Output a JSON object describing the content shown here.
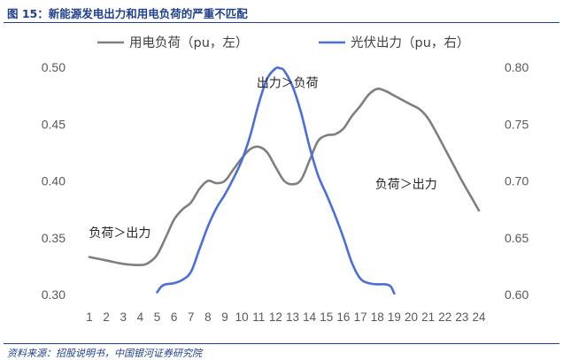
{
  "figure": {
    "title": "图 15：新能源发电出力和用电负荷的严重不匹配",
    "source": "资料来源：招股说明书，中国银河证券研究院"
  },
  "chart_data": {
    "type": "line",
    "x": [
      1,
      2,
      3,
      4,
      5,
      6,
      7,
      8,
      9,
      10,
      11,
      12,
      13,
      14,
      15,
      16,
      17,
      18,
      19,
      20,
      21,
      22,
      23,
      24
    ],
    "x_ticks": [
      "1",
      "2",
      "3",
      "4",
      "5",
      "6",
      "7",
      "8",
      "9",
      "10",
      "11",
      "12",
      "13",
      "14",
      "15",
      "16",
      "17",
      "18",
      "19",
      "20",
      "21",
      "22",
      "23",
      "24"
    ],
    "y_left": {
      "range": [
        0.3,
        0.5
      ],
      "ticks": [
        "0.30",
        "0.35",
        "0.40",
        "0.45",
        "0.50"
      ]
    },
    "y_right": {
      "range": [
        0.6,
        0.8
      ],
      "ticks": [
        "0.60",
        "0.65",
        "0.70",
        "0.75",
        "0.80"
      ]
    },
    "series": [
      {
        "name": "用电负荷（pu，左）",
        "axis": "left",
        "color": "#7f7f7f",
        "x": [
          1,
          2,
          3,
          4,
          4.5,
          5,
          5.5,
          6,
          6.5,
          7,
          7.5,
          8,
          8.5,
          9,
          9.5,
          10,
          10.5,
          11,
          11.5,
          12,
          12.5,
          13,
          13.5,
          14,
          14.5,
          15,
          15.5,
          16,
          16.5,
          17,
          17.5,
          18,
          18.5,
          19,
          19.5,
          20,
          20.5,
          21,
          21.5,
          22,
          22.5,
          23,
          23.5,
          24
        ],
        "values": [
          0.333,
          0.33,
          0.327,
          0.326,
          0.328,
          0.335,
          0.35,
          0.366,
          0.375,
          0.381,
          0.393,
          0.4,
          0.398,
          0.4,
          0.41,
          0.42,
          0.428,
          0.43,
          0.425,
          0.412,
          0.4,
          0.397,
          0.401,
          0.418,
          0.435,
          0.44,
          0.441,
          0.446,
          0.457,
          0.466,
          0.476,
          0.481,
          0.479,
          0.475,
          0.471,
          0.467,
          0.463,
          0.455,
          0.442,
          0.428,
          0.414,
          0.4,
          0.387,
          0.374
        ]
      },
      {
        "name": "光伏出力（pu，右）",
        "axis": "right",
        "color": "#4a6fd9",
        "x": [
          5,
          5.25,
          5.5,
          6,
          6.5,
          7,
          7.5,
          8,
          8.5,
          9,
          9.5,
          10,
          10.5,
          11,
          11.5,
          12,
          12.25,
          12.5,
          13,
          13.5,
          14,
          14.5,
          15,
          15.5,
          16,
          16.5,
          17,
          17.5,
          18,
          18.5,
          18.8,
          19
        ],
        "values": [
          0.602,
          0.607,
          0.609,
          0.61,
          0.613,
          0.62,
          0.64,
          0.66,
          0.676,
          0.688,
          0.702,
          0.718,
          0.74,
          0.768,
          0.79,
          0.799,
          0.799,
          0.797,
          0.783,
          0.76,
          0.73,
          0.705,
          0.688,
          0.67,
          0.65,
          0.628,
          0.614,
          0.61,
          0.609,
          0.609,
          0.607,
          0.601
        ]
      }
    ],
    "annotations": [
      {
        "text": "出力＞负荷",
        "x": 12.7,
        "y_left": 0.4825
      },
      {
        "text": "负荷＞出力",
        "x": 19.7,
        "y_left": 0.3935
      },
      {
        "text": "负荷＞出力",
        "x": 2.8,
        "y_left": 0.3505
      }
    ],
    "legend": "top",
    "grid": false
  }
}
